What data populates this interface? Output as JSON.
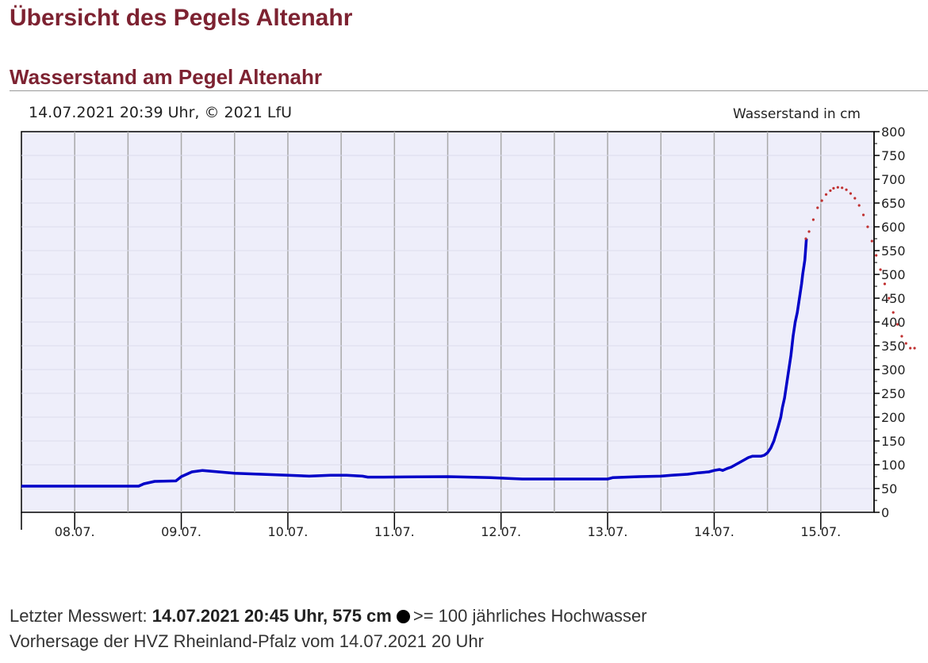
{
  "page": {
    "title": "Übersicht des Pegels Altenahr",
    "section_title": "Wasserstand am Pegel Altenahr"
  },
  "chart_data": {
    "type": "line",
    "title": "14.07.2021 20:39 Uhr, © 2021 LfU",
    "ylabel": "Wasserstand in cm",
    "xlabel": "",
    "x_tick_labels": [
      "08.07.",
      "09.07.",
      "10.07.",
      "11.07.",
      "12.07.",
      "13.07.",
      "14.07.",
      "15.07."
    ],
    "y_tick_labels": [
      "0",
      "50",
      "100",
      "150",
      "200",
      "250",
      "300",
      "350",
      "400",
      "450",
      "500",
      "550",
      "600",
      "650",
      "700",
      "750",
      "800"
    ],
    "ylim": [
      0,
      800
    ],
    "xlim": [
      "07.07.2021 12:00",
      "15.07.2021 12:00"
    ],
    "grid": true,
    "background_color": "#eeeefa",
    "series": [
      {
        "style": "solid",
        "color": "#0000c8",
        "x_day_of_july": [
          7.5,
          8.6,
          8.65,
          8.75,
          8.95,
          9.0,
          9.1,
          9.2,
          9.35,
          9.5,
          9.75,
          10.0,
          10.2,
          10.4,
          10.55,
          10.7,
          10.75,
          10.9,
          11.5,
          11.9,
          12.2,
          12.5,
          12.8,
          13.0,
          13.05,
          13.3,
          13.5,
          13.6,
          13.75,
          13.85,
          13.95,
          14.0,
          14.05,
          14.08,
          14.12,
          14.16,
          14.2,
          14.24,
          14.28,
          14.32,
          14.36,
          14.4,
          14.44,
          14.47,
          14.5,
          14.53,
          14.56,
          14.58,
          14.6,
          14.625,
          14.64,
          14.66,
          14.68,
          14.7,
          14.72,
          14.74,
          14.76,
          14.78,
          14.8,
          14.82,
          14.83,
          14.85,
          14.865
        ],
        "values": [
          55,
          55,
          60,
          65,
          66,
          75,
          85,
          88,
          85,
          82,
          80,
          78,
          76,
          78,
          78,
          76,
          74,
          74,
          75,
          73,
          70,
          70,
          70,
          70,
          73,
          75,
          76,
          78,
          80,
          83,
          85,
          88,
          90,
          88,
          92,
          95,
          100,
          105,
          110,
          115,
          118,
          118,
          118,
          120,
          125,
          135,
          150,
          165,
          180,
          200,
          220,
          240,
          270,
          300,
          330,
          370,
          400,
          420,
          450,
          480,
          500,
          530,
          575
        ]
      },
      {
        "style": "dotted",
        "color": "#c03030",
        "x_day_of_july": [
          14.86,
          14.89,
          14.93,
          14.97,
          15.01,
          15.05,
          15.09,
          15.12,
          15.16,
          15.2,
          15.24,
          15.28,
          15.32,
          15.36,
          15.4,
          15.44,
          15.48,
          15.52,
          15.56,
          15.6,
          15.64,
          15.68,
          15.72,
          15.76,
          15.8,
          15.84,
          15.88
        ],
        "values": [
          575,
          590,
          615,
          640,
          655,
          668,
          676,
          681,
          683,
          682,
          678,
          670,
          660,
          645,
          625,
          600,
          570,
          540,
          510,
          480,
          450,
          420,
          395,
          370,
          355,
          345,
          345
        ]
      }
    ]
  },
  "footer": {
    "line1_prefix": "Letzter Messwert: ",
    "line1_bold": "14.07.2021 20:45 Uhr, 575 cm",
    "line1_suffix": ">= 100 jährliches Hochwasser",
    "line2": "Vorhersage der HVZ Rheinland-Pfalz vom 14.07.2021 20 Uhr"
  }
}
